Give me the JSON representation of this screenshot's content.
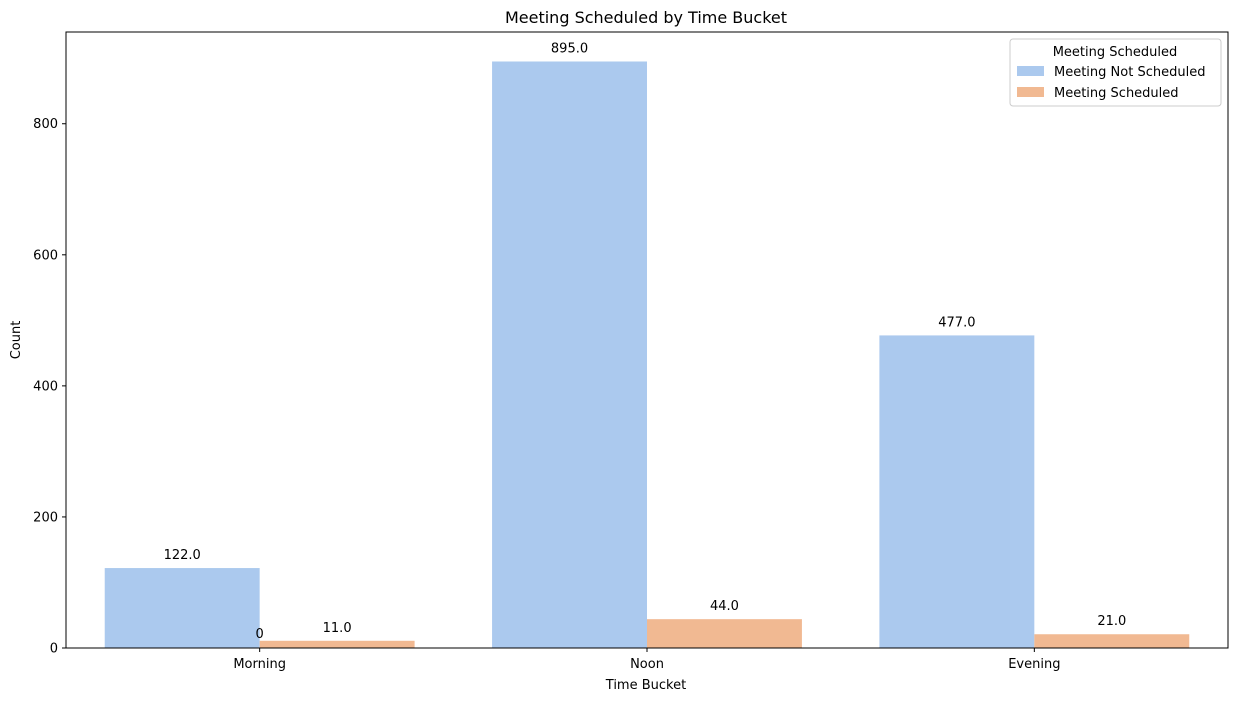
{
  "chart_data": {
    "type": "bar",
    "title": "Meeting Scheduled by Time Bucket",
    "xlabel": "Time Bucket",
    "ylabel": "Count",
    "categories": [
      "Morning",
      "Noon",
      "Evening"
    ],
    "series": [
      {
        "name": "Meeting Not Scheduled",
        "color": "#abc9ee",
        "values": [
          122,
          895,
          477
        ],
        "labels": [
          "122.0",
          "895.0",
          "477.0"
        ]
      },
      {
        "name": "Meeting Scheduled",
        "color": "#f1b992",
        "values": [
          11,
          44,
          21
        ],
        "labels": [
          "11.0",
          "44.0",
          "21.0"
        ]
      }
    ],
    "extra_annotation": "0",
    "ylim": [
      0,
      940
    ],
    "yticks": [
      0,
      200,
      400,
      600,
      800
    ],
    "grid": false,
    "legend": {
      "title": "Meeting Scheduled",
      "placement": "top-right"
    }
  }
}
